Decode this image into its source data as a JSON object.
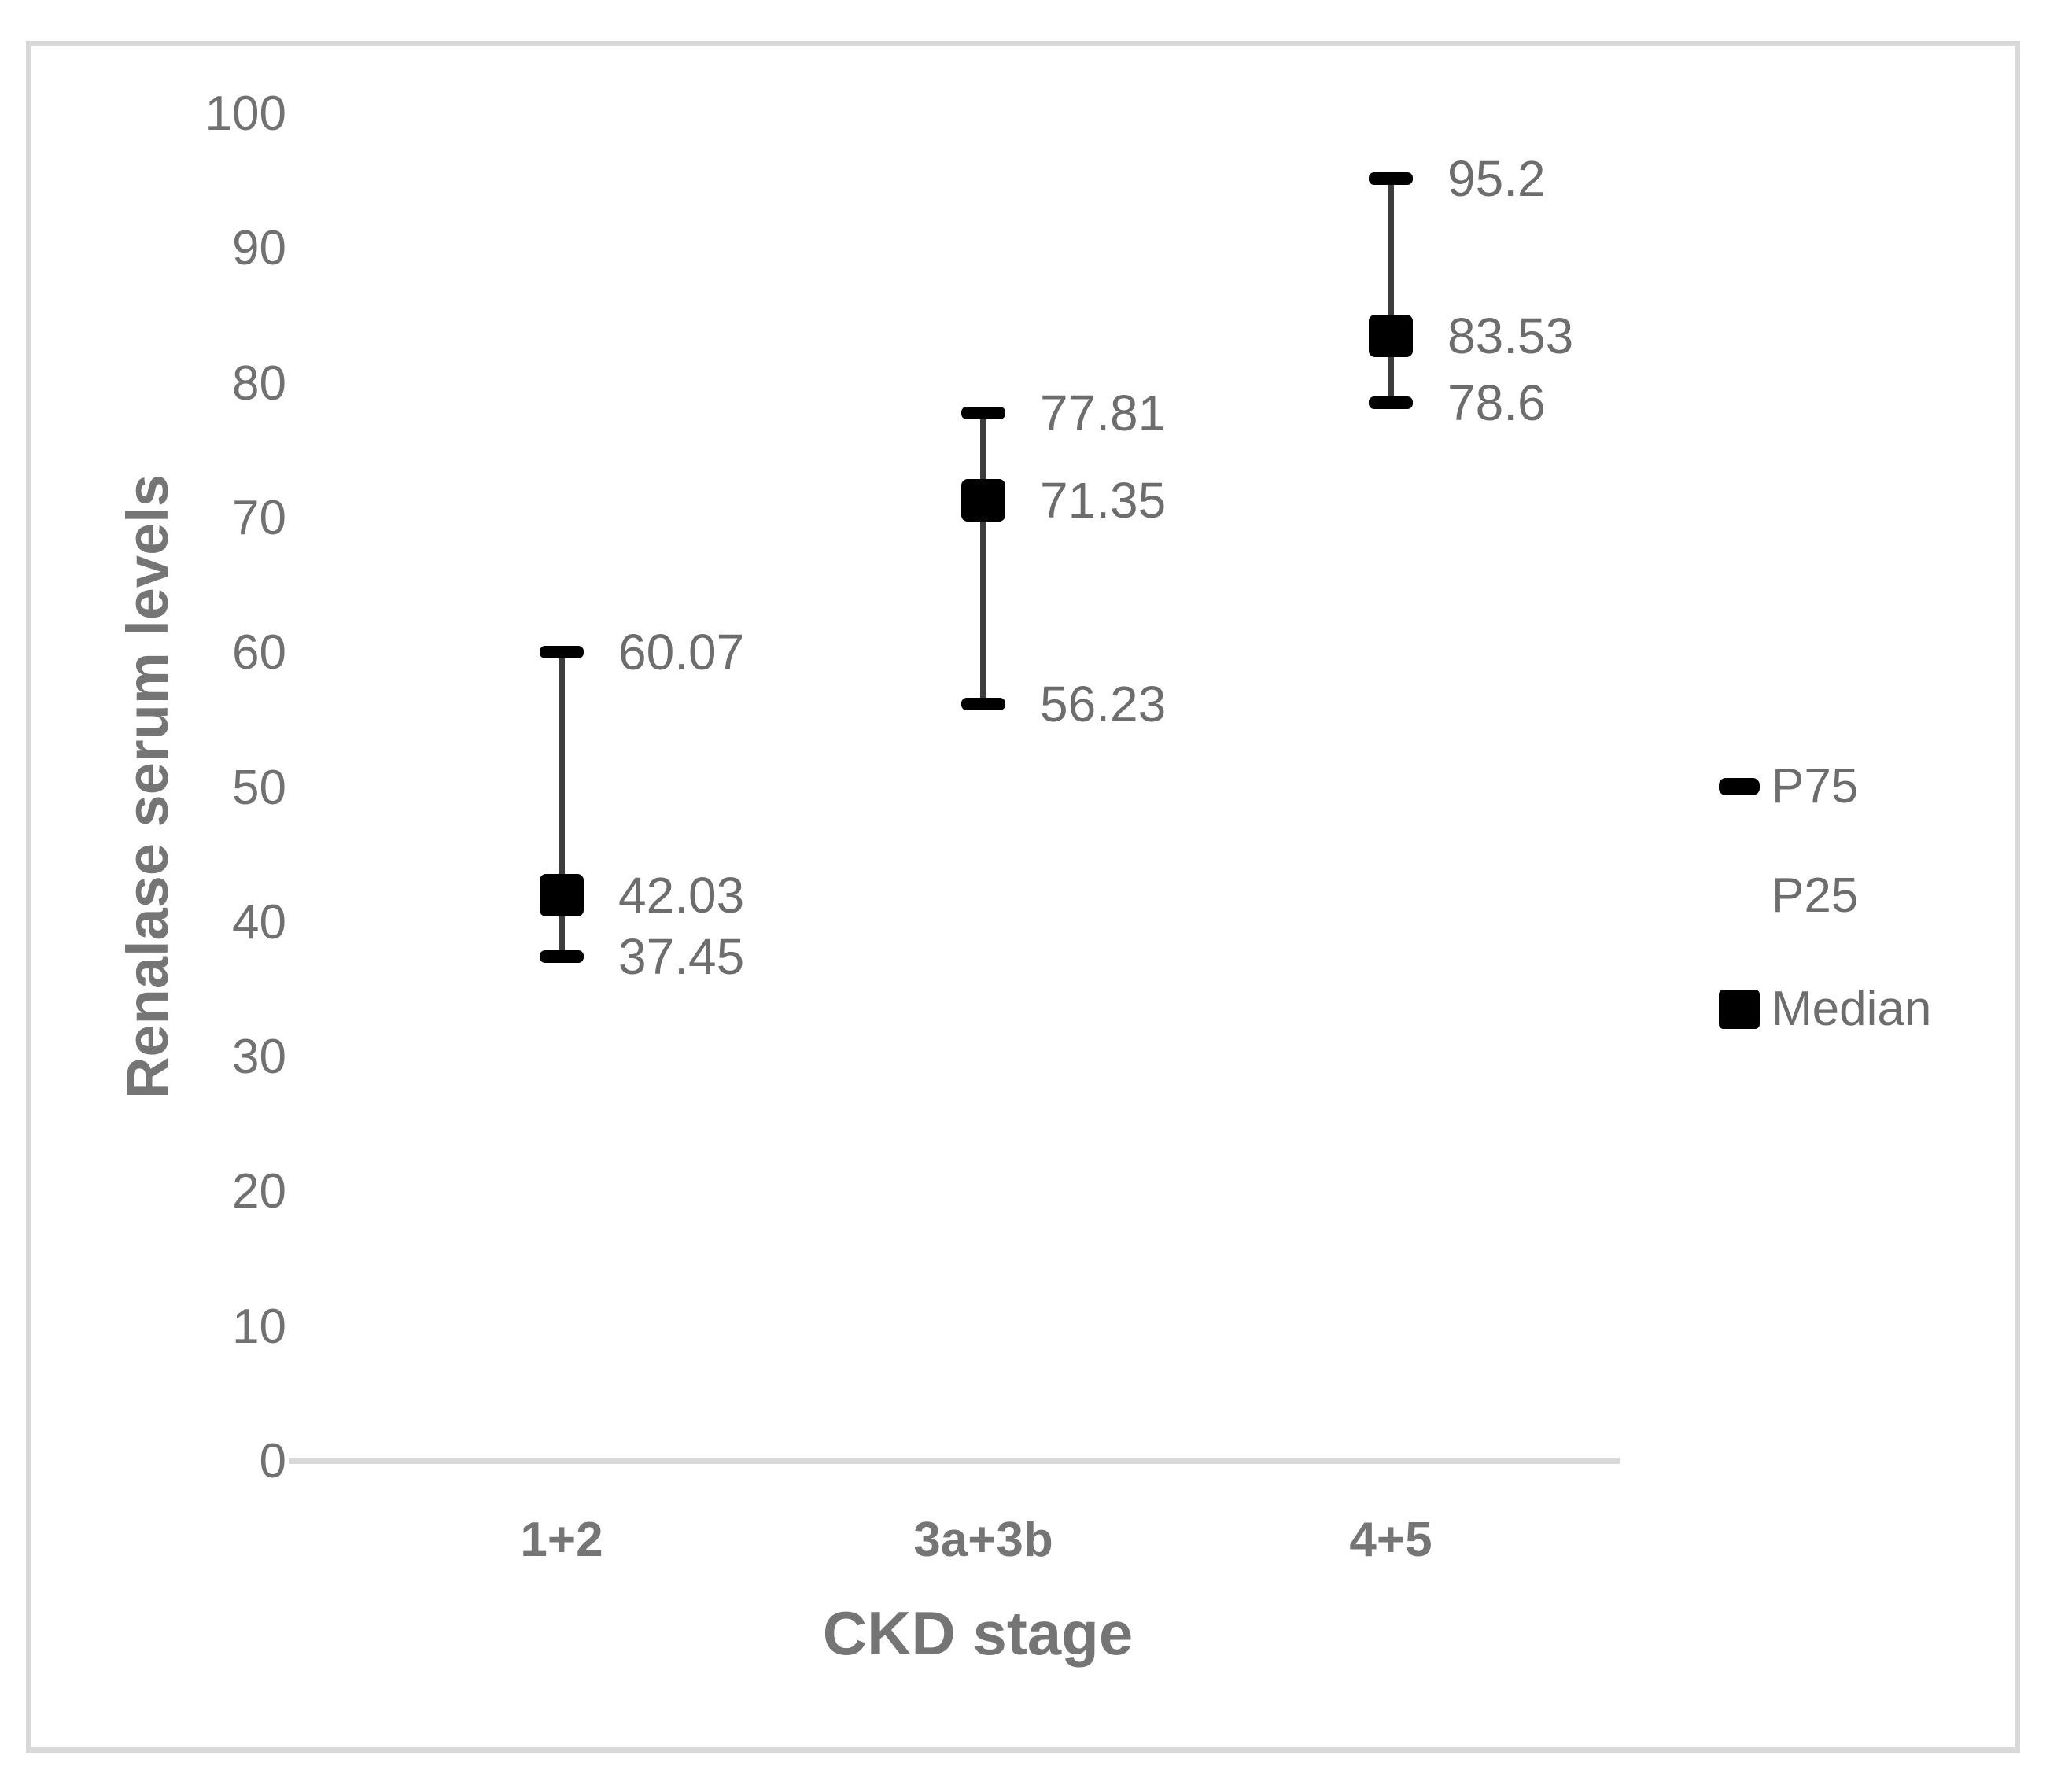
{
  "figure": {
    "background": "#ffffff",
    "border_color": "#d9d9d9"
  },
  "colors": {
    "marker": "#000000",
    "whisker": "#3d3d3d",
    "axis_line": "#d9d9d9",
    "tick_text": "#717171",
    "label_text": "#6d6d6d",
    "title_text": "#757575"
  },
  "chart_data": {
    "type": "scatter",
    "title": "",
    "xlabel": "CKD stage",
    "ylabel": "Renalase serum levels",
    "categories": [
      "1+2",
      "3a+3b",
      "4+5"
    ],
    "series": [
      {
        "name": "P75",
        "marker": "dash",
        "values": [
          60.07,
          77.81,
          95.2
        ],
        "labels": [
          "60.07",
          "77.81",
          "95.2"
        ]
      },
      {
        "name": "Median",
        "marker": "square",
        "values": [
          42.03,
          71.35,
          83.53
        ],
        "labels": [
          "42.03",
          "71.35",
          "83.53"
        ]
      },
      {
        "name": "P25",
        "marker": "dash",
        "values": [
          37.45,
          56.23,
          78.6
        ],
        "labels": [
          "37.45",
          "56.23",
          "78.6"
        ]
      }
    ],
    "ylim": [
      0,
      100
    ],
    "yticks": [
      100,
      90,
      80,
      70,
      60,
      50,
      40,
      30,
      20,
      10,
      0
    ],
    "ytick_labels": [
      "100",
      "90",
      "80",
      "70",
      "60",
      "50",
      "40",
      "30",
      "20",
      "10",
      "0"
    ],
    "grid": false,
    "legend_position": "right",
    "legend": [
      {
        "label": "P75",
        "marker": "dash"
      },
      {
        "label": "P25",
        "marker": "none"
      },
      {
        "label": "Median",
        "marker": "square"
      }
    ]
  }
}
